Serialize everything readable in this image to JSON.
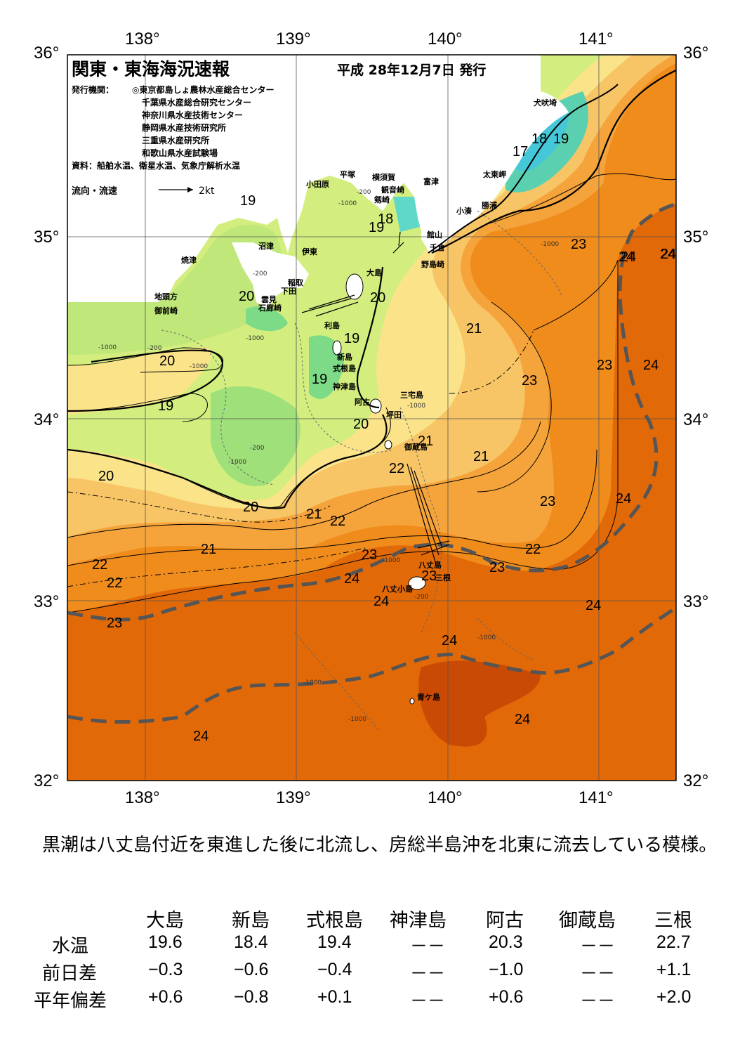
{
  "map": {
    "title": "関東・東海海況速報",
    "date": "平成 28年12月7日 発行",
    "issuer_label": "発行機関：",
    "issuers": [
      "◎東京都島しょ農林水産総合センター",
      "千葉県水産総合研究センター",
      "神奈川県水産技術センター",
      "静岡県水産技術研究所",
      "三重県水産研究所",
      "和歌山県水産試験場"
    ],
    "source": "資料：船舶水温、衛星水温、気象庁解析水温",
    "current_legend": "流向・流速",
    "current_scale": "2kt",
    "lon_ticks": [
      "138°",
      "139°",
      "140°",
      "141°"
    ],
    "lat_ticks": [
      "36°",
      "35°",
      "34°",
      "33°",
      "32°"
    ],
    "place_names": [
      "犬吠埼",
      "太東岬",
      "勝浦",
      "小湊",
      "富津",
      "横須賀",
      "平塚",
      "小田原",
      "観音崎",
      "剱崎",
      "館山",
      "千倉",
      "野島崎",
      "沼津",
      "伊東",
      "稲取",
      "下田",
      "雲見",
      "石廊崎",
      "焼津",
      "地頭方",
      "御前崎",
      "大島",
      "利島",
      "新島",
      "式根島",
      "神津島",
      "阿古",
      "三宅島",
      "坪田",
      "御蔵島",
      "八丈島",
      "三根",
      "八丈小島",
      "青ケ島"
    ],
    "temperature_labels": [
      "19",
      "17",
      "18",
      "19",
      "19",
      "18",
      "20",
      "19",
      "19",
      "20",
      "20",
      "19",
      "20",
      "20",
      "20",
      "21",
      "23",
      "24",
      "24",
      "21",
      "23",
      "23",
      "24",
      "21",
      "21",
      "22",
      "22",
      "23",
      "21",
      "22",
      "24",
      "22",
      "23",
      "23",
      "22",
      "24",
      "23",
      "24",
      "23",
      "24",
      "24",
      "24",
      "24",
      "24",
      "24"
    ],
    "depth_labels": [
      "-200",
      "-1000"
    ]
  },
  "note": "　黒潮は八丈島付近を東進した後に北流し、房総半島沖を北東に流去している模様。",
  "table": {
    "columns": [
      "大島",
      "新島",
      "式根島",
      "神津島",
      "阿古",
      "御蔵島",
      "三根"
    ],
    "rows": [
      {
        "label": "水温",
        "values": [
          "19.6",
          "18.4",
          "19.4",
          "－－",
          "20.3",
          "－－",
          "22.7"
        ]
      },
      {
        "label": "前日差",
        "values": [
          "−0.3",
          "−0.6",
          "−0.4",
          "－－",
          "−1.0",
          "－－",
          "+1.1"
        ]
      },
      {
        "label": "平年偏差",
        "values": [
          "+0.6",
          "−0.8",
          "+0.1",
          "－－",
          "+0.6",
          "－－",
          "+2.0"
        ]
      }
    ]
  }
}
